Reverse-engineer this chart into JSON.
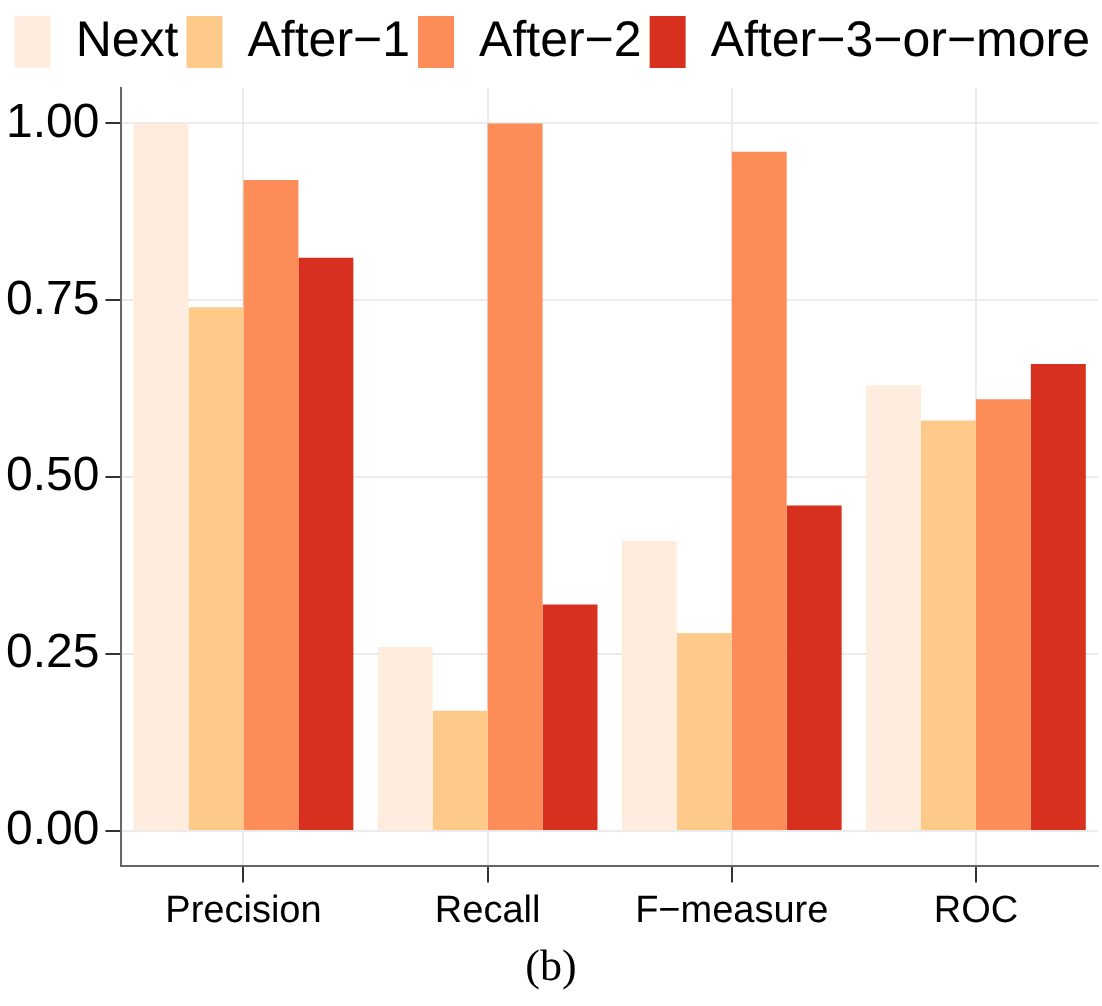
{
  "chart_data": {
    "type": "bar",
    "categories": [
      "Precision",
      "Recall",
      "F−measure",
      "ROC"
    ],
    "series": [
      {
        "name": "Next",
        "color": "#feedde",
        "values": [
          1.0,
          0.26,
          0.41,
          0.63
        ]
      },
      {
        "name": "After−1",
        "color": "#fdca8a",
        "values": [
          0.74,
          0.17,
          0.28,
          0.58
        ]
      },
      {
        "name": "After−2",
        "color": "#fc8d59",
        "values": [
          0.92,
          1.0,
          0.96,
          0.61
        ]
      },
      {
        "name": "After−3−or−more",
        "color": "#d7301f",
        "values": [
          0.81,
          0.32,
          0.46,
          0.66
        ]
      }
    ],
    "ylim": [
      -0.05,
      1.05
    ],
    "yticks": [
      {
        "value": 0,
        "label": "0.00"
      },
      {
        "value": 0.25,
        "label": "0.25"
      },
      {
        "value": 0.5,
        "label": "0.50"
      },
      {
        "value": 0.75,
        "label": "0.75"
      },
      {
        "value": 1,
        "label": "1.00"
      }
    ],
    "grid": true,
    "legend": "top",
    "annotations": [
      "(b)"
    ]
  }
}
